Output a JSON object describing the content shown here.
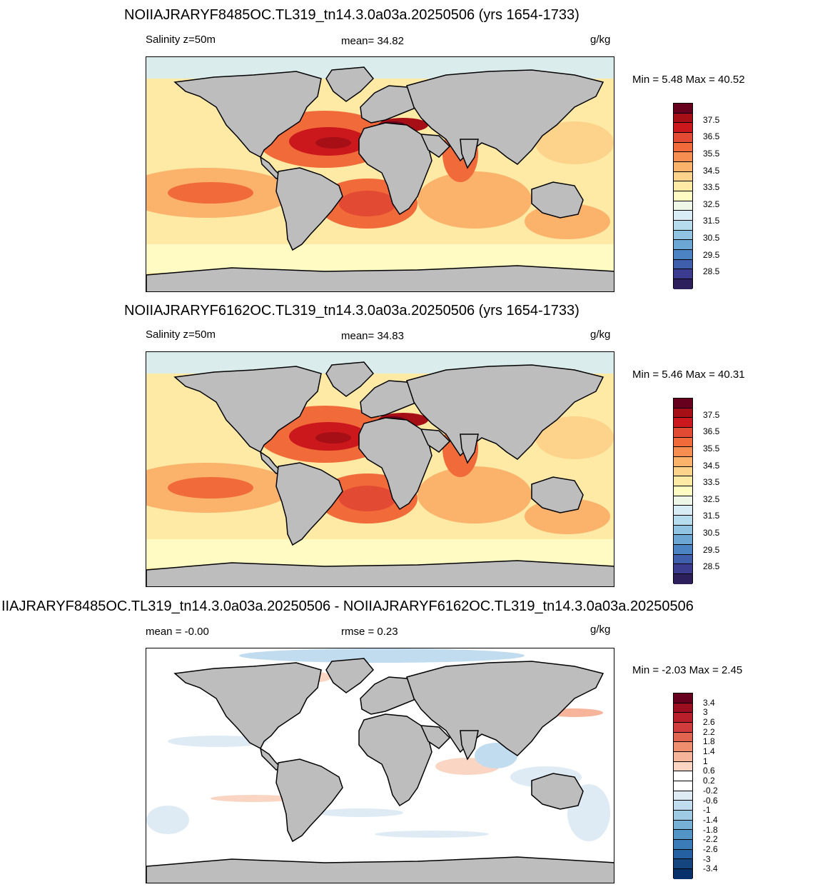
{
  "panels": [
    {
      "title": "NOIIAJRARYF8485OC.TL319_tn14.3.0a03a.20250506 (yrs 1654-1733)",
      "left_label": "Salinity z=50m",
      "center_label": "mean=  34.82",
      "units": "g/kg",
      "minmax": "Min =   5.48 Max =  40.52",
      "colorbar_labels": [
        "37.5",
        "36.5",
        "35.5",
        "34.5",
        "33.5",
        "32.5",
        "31.5",
        "30.5",
        "29.5",
        "28.5"
      ]
    },
    {
      "title": "NOIIAJRARYF6162OC.TL319_tn14.3.0a03a.20250506 (yrs 1654-1733)",
      "left_label": "Salinity z=50m",
      "center_label": "mean=  34.83",
      "units": "g/kg",
      "minmax": "Min =   5.46 Max =  40.31",
      "colorbar_labels": [
        "37.5",
        "36.5",
        "35.5",
        "34.5",
        "33.5",
        "32.5",
        "31.5",
        "30.5",
        "29.5",
        "28.5"
      ]
    },
    {
      "title": "IIAJRARYF8485OC.TL319_tn14.3.0a03a.20250506 - NOIIAJRARYF6162OC.TL319_tn14.3.0a03a.20250506",
      "left_label": "mean =  -0.00",
      "center_label": "rmse =   0.23",
      "units": "g/kg",
      "minmax": "Min =  -2.03 Max =   2.45",
      "colorbar_labels": [
        "3.4",
        "3",
        "2.6",
        "2.2",
        "1.8",
        "1.4",
        "1",
        "0.6",
        "0.2",
        "-0.2",
        "-0.6",
        "-1",
        "-1.4",
        "-1.8",
        "-2.2",
        "-2.6",
        "-3",
        "-3.4"
      ]
    }
  ],
  "colors": {
    "land": "#bdbdbd",
    "salinity_scale": [
      "#67001f",
      "#a50f15",
      "#cb181d",
      "#e34a33",
      "#f16a3a",
      "#f68e52",
      "#fbb26b",
      "#fdd28a",
      "#fee9a5",
      "#fffbc2",
      "#eef7e7",
      "#d7ecf4",
      "#b6dbec",
      "#91c3e2",
      "#6ba6d4",
      "#4c83c3",
      "#3f5fac",
      "#3b3b8f",
      "#2d1e5c"
    ],
    "diff_scale": [
      "#67001f",
      "#9a0e20",
      "#b91f2a",
      "#cf3c3b",
      "#e0644f",
      "#ee8e6f",
      "#f6b49a",
      "#fad5c3",
      "#ffffff",
      "#ffffff",
      "#dfebf4",
      "#c1dcee",
      "#9ecae3",
      "#77b0d6",
      "#5495c8",
      "#3a7bb8",
      "#2460a2",
      "#14457f",
      "#08306b"
    ]
  }
}
